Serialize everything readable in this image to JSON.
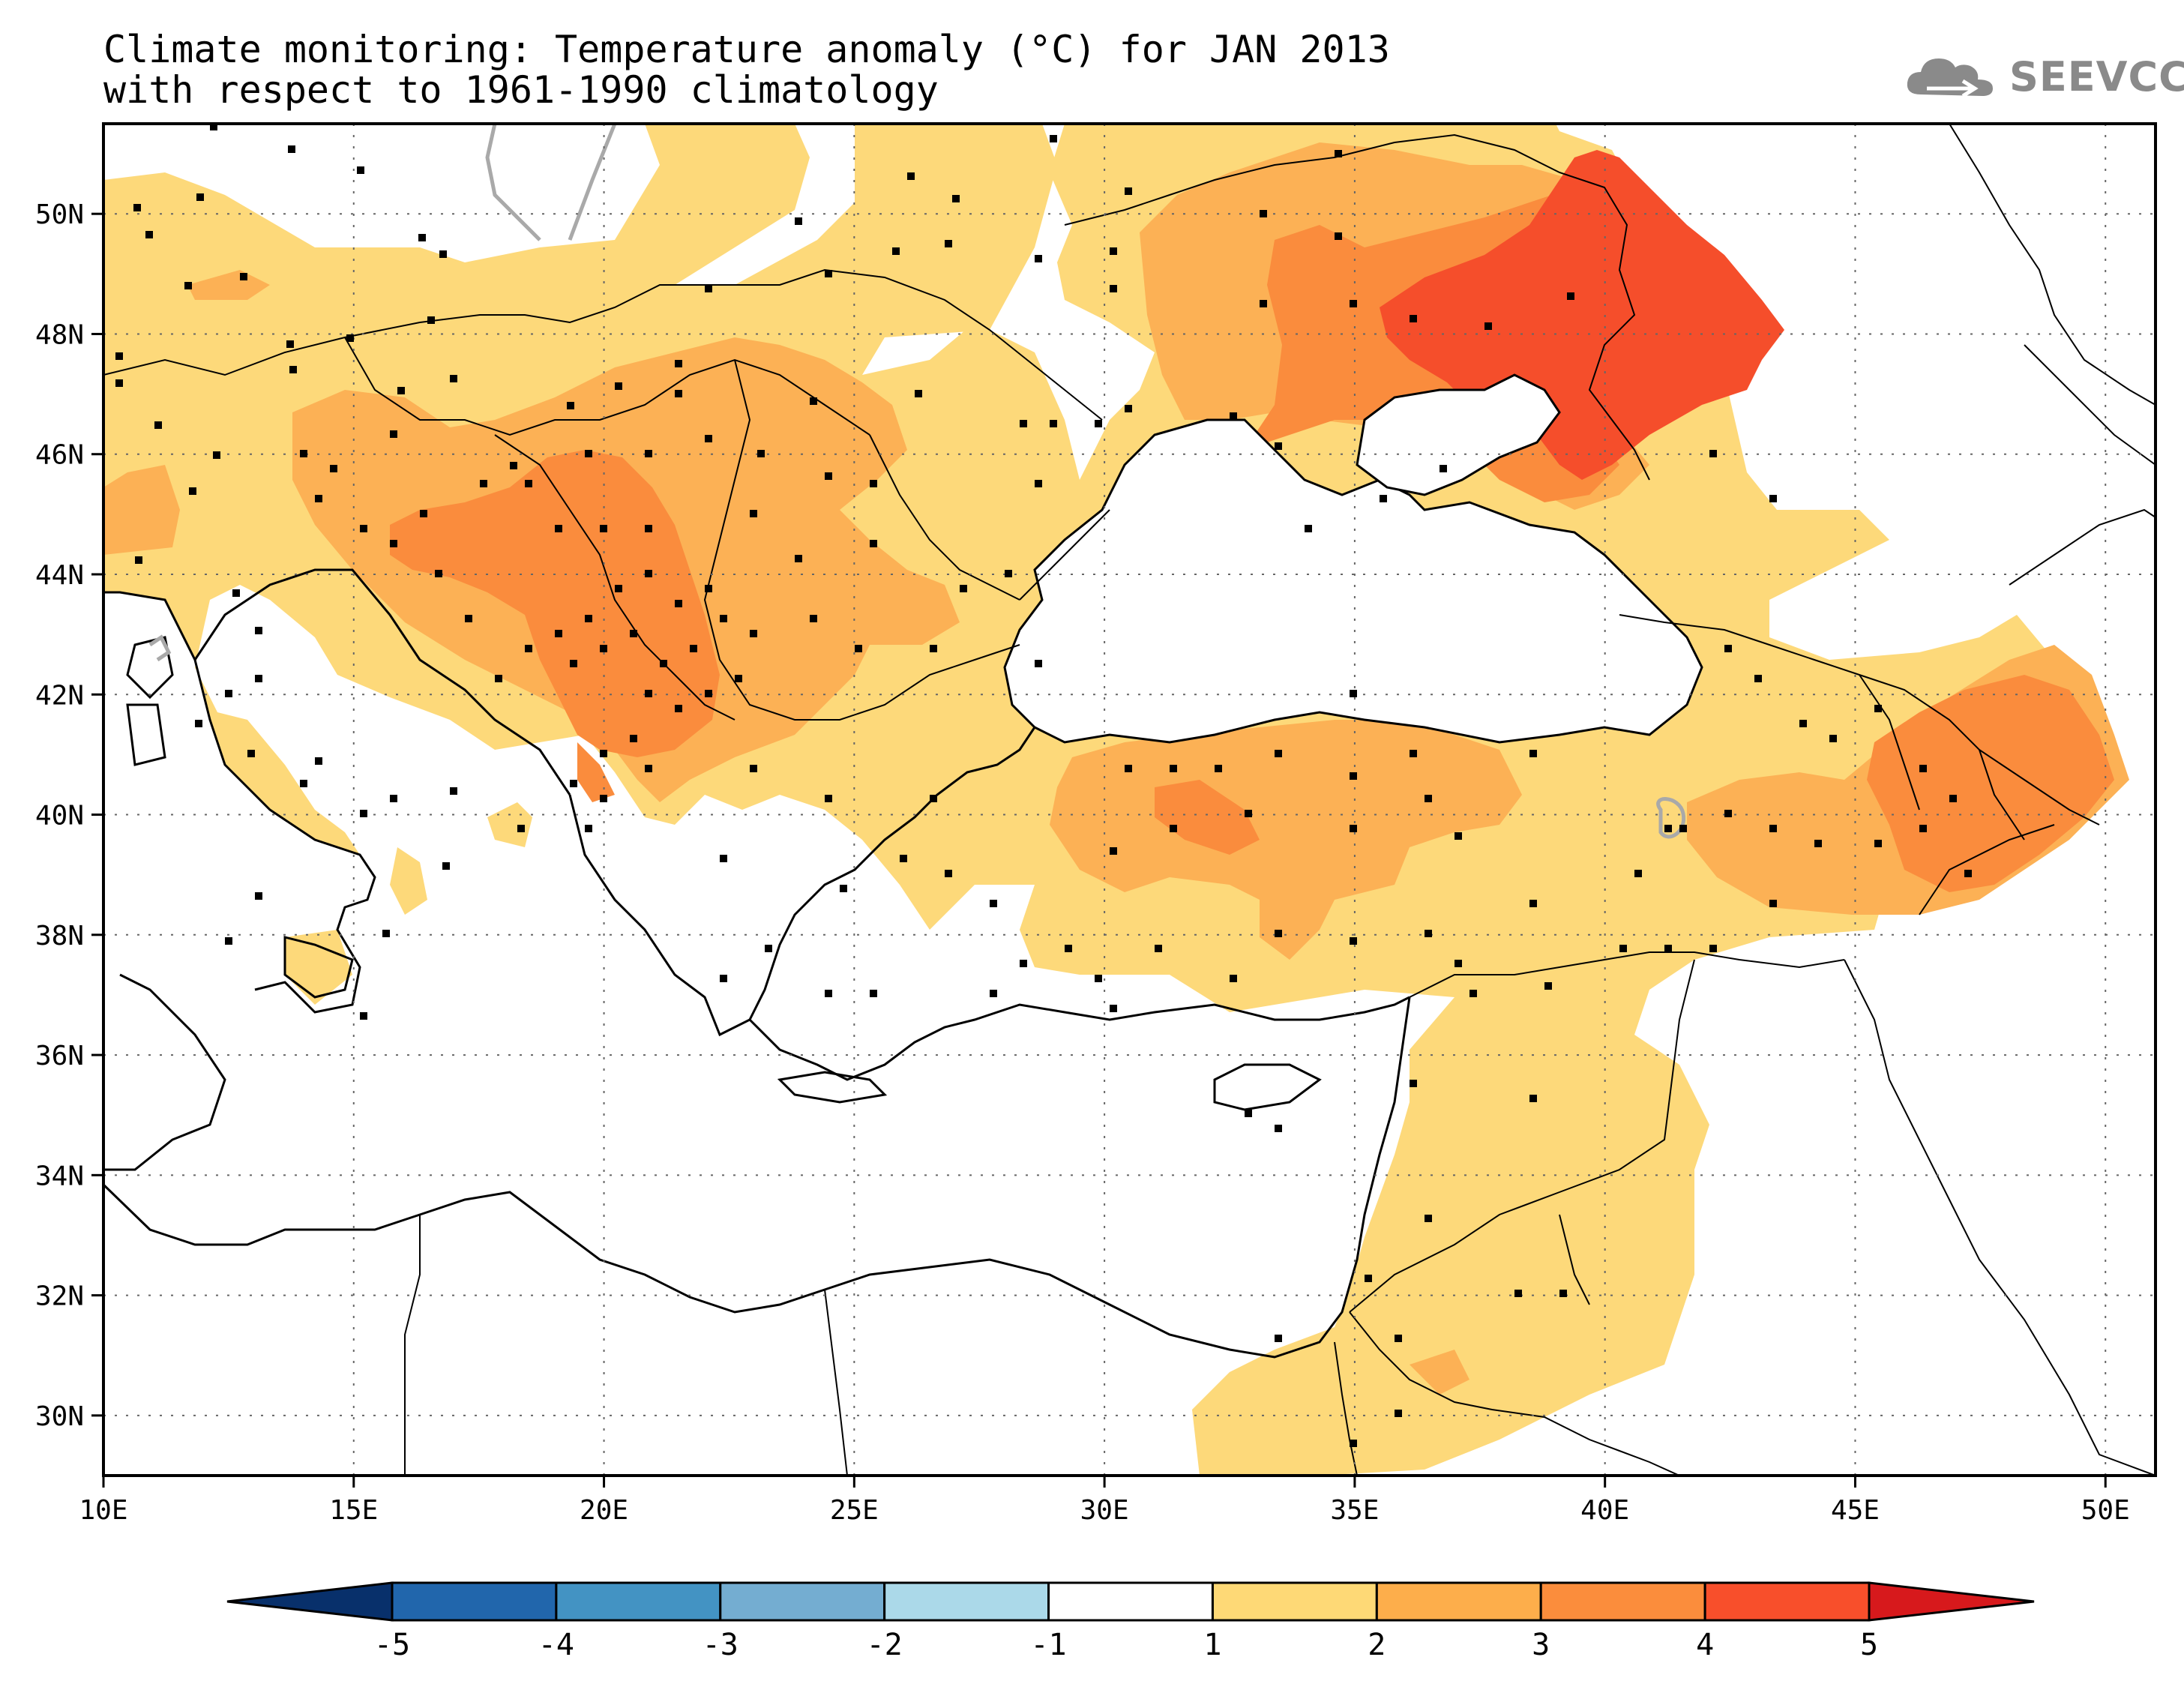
{
  "title": {
    "line1": "Climate monitoring: Temperature anomaly (°C) for JAN 2013",
    "line2": "with respect to 1961-1990 climatology"
  },
  "logo": {
    "text": "SEEVCCC",
    "icon": "cloud-icon"
  },
  "map": {
    "lon_range": [
      10,
      51
    ],
    "lat_range": [
      29,
      51.5
    ],
    "x_ticks": [
      "10E",
      "15E",
      "20E",
      "25E",
      "30E",
      "35E",
      "40E",
      "45E",
      "50E"
    ],
    "x_tick_values": [
      10,
      15,
      20,
      25,
      30,
      35,
      40,
      45,
      50
    ],
    "y_ticks": [
      "30N",
      "32N",
      "34N",
      "36N",
      "38N",
      "40N",
      "42N",
      "44N",
      "46N",
      "48N",
      "50N"
    ],
    "y_tick_values": [
      30,
      32,
      34,
      36,
      38,
      40,
      42,
      44,
      46,
      48,
      50
    ],
    "gridlines": true
  },
  "colorbar": {
    "labels": [
      "-5",
      "-4",
      "-3",
      "-2",
      "-1",
      "1",
      "2",
      "3",
      "4",
      "5"
    ],
    "colors": [
      "#08306b",
      "#2166ac",
      "#4393c3",
      "#74add1",
      "#abd9e9",
      "#ffffff",
      "#fed976",
      "#fdae4b",
      "#fb8d3c",
      "#f84f2b",
      "#d7191c"
    ],
    "extend": "both"
  },
  "colors": {
    "c1": "#fdd97a",
    "c2": "#fcb155",
    "c3": "#fa8c3d",
    "c4": "#f54e2b"
  }
}
